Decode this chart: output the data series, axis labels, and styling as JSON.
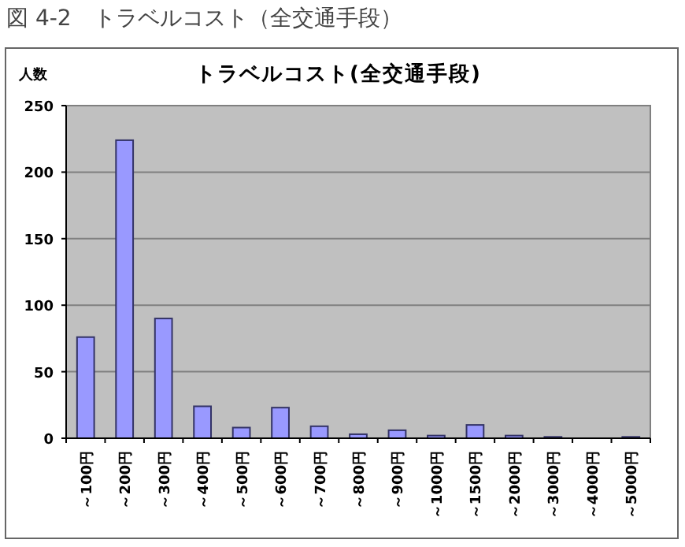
{
  "chart_data": {
    "type": "bar",
    "title": "トラベルコスト(全交通手段)",
    "ylabel": "人数",
    "annotations": [
      "図 4-2　トラベルコスト（全交通手段）"
    ],
    "categories": [
      "～100円",
      "～200円",
      "～300円",
      "～400円",
      "～500円",
      "～600円",
      "～700円",
      "～800円",
      "～900円",
      "～1000円",
      "～1500円",
      "～2000円",
      "～3000円",
      "～4000円",
      "～5000円"
    ],
    "series": [
      {
        "color": "#9999ff",
        "values": [
          76,
          224,
          90,
          24,
          8,
          23,
          9,
          3,
          6,
          2,
          10,
          2,
          1,
          0,
          1
        ]
      }
    ],
    "ylim": [
      0,
      250
    ],
    "yticks": [
      0,
      50,
      100,
      150,
      200,
      250
    ],
    "grid": "y"
  }
}
